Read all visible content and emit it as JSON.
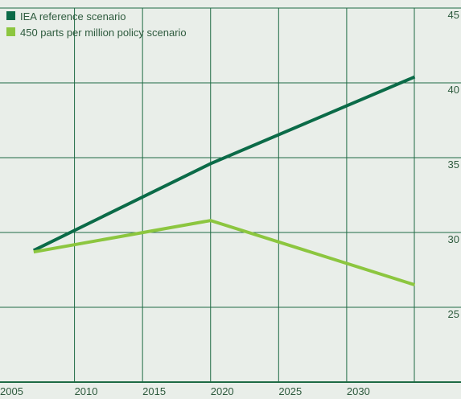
{
  "chart_data": {
    "type": "line",
    "x": [
      2007,
      2020,
      2035
    ],
    "series": [
      {
        "name": "IEA reference scenario",
        "color": "#0b6b48",
        "values": [
          28.8,
          34.6,
          40.4
        ]
      },
      {
        "name": "450 parts per million policy scenario",
        "color": "#8cc63f",
        "values": [
          28.7,
          30.8,
          26.5
        ]
      }
    ],
    "xlim": [
      2005,
      2038.4
    ],
    "xticks": [
      2005,
      2010,
      2015,
      2020,
      2025,
      2030
    ],
    "ylim": [
      20,
      45
    ],
    "yticks": [
      25,
      30,
      35,
      40,
      45
    ],
    "grid": true,
    "legend": "top-left"
  }
}
